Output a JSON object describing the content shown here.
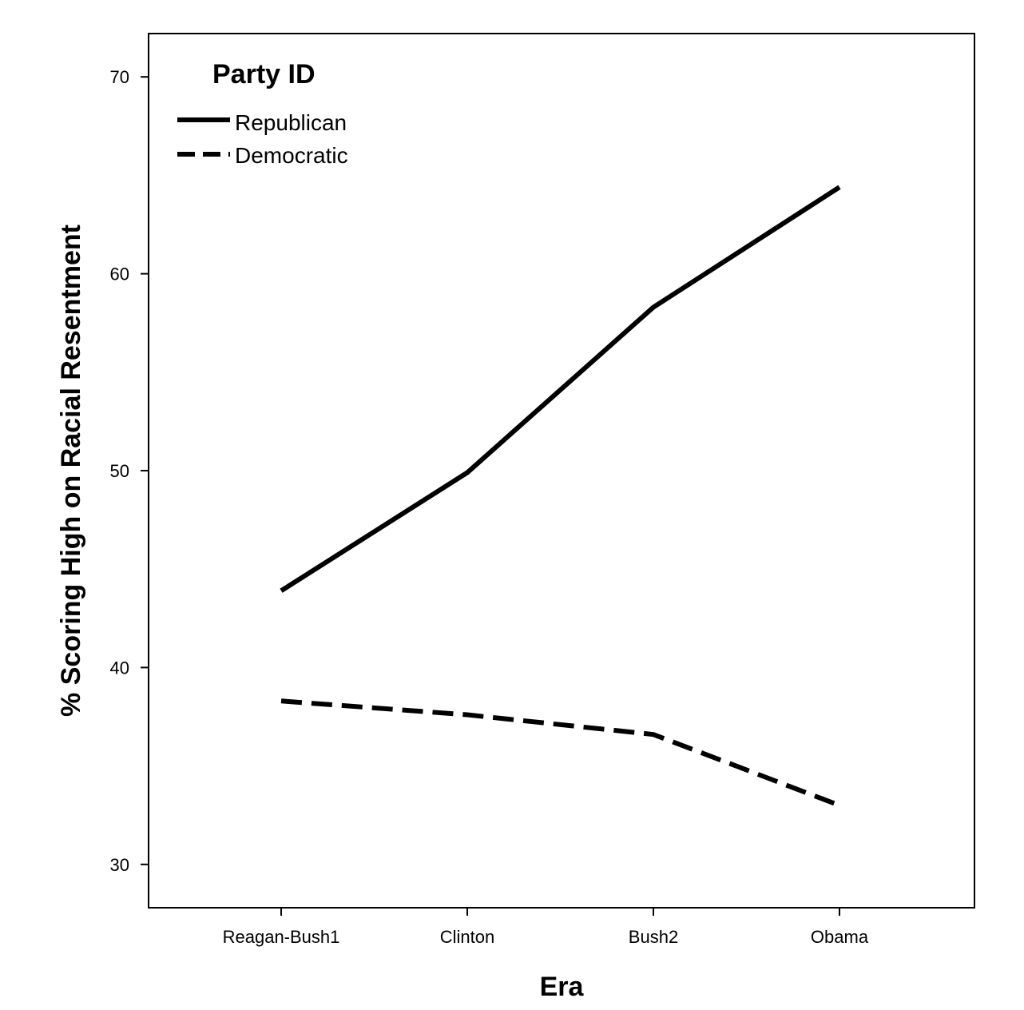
{
  "chart_data": {
    "type": "line",
    "title": "",
    "xlabel": "Era",
    "ylabel": "% Scoring High on Racial Resentment",
    "categories": [
      "Reagan-Bush1",
      "Clinton",
      "Bush2",
      "Obama"
    ],
    "ylim": [
      27.8,
      72.2
    ],
    "yticks": [
      30,
      40,
      50,
      60,
      70
    ],
    "grid": false,
    "legend": {
      "title": "Party ID",
      "placement": "top-left"
    },
    "series": [
      {
        "name": "Republican",
        "style": "solid",
        "color": "#000000",
        "values": [
          43.9,
          49.9,
          58.3,
          64.4
        ]
      },
      {
        "name": "Democratic",
        "style": "dashed",
        "color": "#000000",
        "values": [
          38.3,
          37.6,
          36.6,
          33.0
        ]
      }
    ]
  }
}
